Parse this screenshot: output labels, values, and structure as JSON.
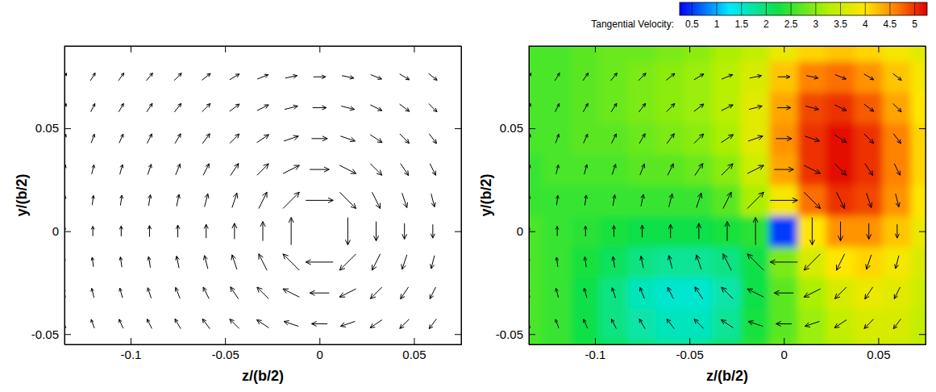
{
  "chart_data": [
    {
      "type": "quiver",
      "x_label": "z/(b/2)",
      "y_label": "y/(b/2)",
      "xlim": [
        -0.135,
        0.075
      ],
      "ylim": [
        -0.055,
        0.09
      ],
      "xticks": [
        -0.1,
        -0.05,
        0,
        0.05
      ],
      "yticks": [
        -0.05,
        0,
        0.05
      ],
      "vectors": {
        "x": [
          -0.135,
          -0.12,
          -0.105,
          -0.09,
          -0.075,
          -0.06,
          -0.045,
          -0.03,
          -0.015,
          0,
          0.015,
          0.03,
          0.045,
          0.06
        ],
        "y": [
          -0.045,
          -0.03,
          -0.015,
          0,
          0.015,
          0.03,
          0.045,
          0.06,
          0.075
        ],
        "u": [
          [
            -0.1,
            -0.12,
            -0.16,
            -0.2,
            -0.26,
            -0.36,
            -0.5,
            -0.69,
            -0.9,
            -1,
            -0.9,
            -0.69,
            -0.5,
            -0.36
          ],
          [
            -0.07,
            -0.09,
            -0.11,
            -0.15,
            -0.21,
            -0.3,
            -0.46,
            -0.75,
            -1.2,
            -1.5,
            -1.2,
            -0.75,
            -0.46,
            -0.3
          ],
          [
            -0.04,
            -0.05,
            -0.06,
            -0.08,
            -0.12,
            -0.18,
            -0.3,
            -0.6,
            -1.5,
            -3,
            -1.5,
            -0.6,
            -0.3,
            -0.18
          ],
          [
            0,
            0,
            0,
            0,
            0,
            0,
            0,
            0,
            0,
            0,
            0,
            0,
            0,
            0
          ],
          [
            0.04,
            0.05,
            0.06,
            0.08,
            0.12,
            0.18,
            0.3,
            0.6,
            1.5,
            3,
            1.5,
            0.6,
            0.3,
            0.18
          ],
          [
            0.07,
            0.09,
            0.11,
            0.15,
            0.21,
            0.3,
            0.46,
            0.75,
            1.2,
            1.5,
            1.2,
            0.75,
            0.46,
            0.3
          ],
          [
            0.1,
            0.12,
            0.16,
            0.2,
            0.26,
            0.36,
            0.5,
            0.69,
            0.9,
            1,
            0.9,
            0.69,
            0.5,
            0.36
          ],
          [
            0.12,
            0.15,
            0.18,
            0.23,
            0.29,
            0.38,
            0.48,
            0.6,
            0.71,
            0.75,
            0.71,
            0.6,
            0.48,
            0.38
          ],
          [
            0.14,
            0.17,
            0.2,
            0.25,
            0.3,
            0.37,
            0.44,
            0.52,
            0.58,
            0.6,
            0.58,
            0.52,
            0.44,
            0.37
          ]
        ],
        "v": [
          [
            0.3,
            0.33,
            0.36,
            0.4,
            0.44,
            0.48,
            0.5,
            0.46,
            0.3,
            0,
            -0.3,
            -0.46,
            -0.5,
            -0.48
          ],
          [
            0.32,
            0.35,
            0.4,
            0.45,
            0.52,
            0.6,
            0.69,
            0.75,
            0.6,
            0,
            -0.6,
            -0.75,
            -0.69,
            -0.6
          ],
          [
            0.33,
            0.37,
            0.42,
            0.49,
            0.58,
            0.71,
            0.9,
            1.2,
            1.5,
            0,
            -1.5,
            -1.2,
            -0.9,
            -0.71
          ],
          [
            0.33,
            0.38,
            0.43,
            0.5,
            0.6,
            0.75,
            1,
            1.5,
            3,
            0,
            -3,
            -1.5,
            -1,
            -0.75
          ],
          [
            0.33,
            0.37,
            0.42,
            0.49,
            0.58,
            0.71,
            0.9,
            1.2,
            1.5,
            0,
            -1.5,
            -1.2,
            -0.9,
            -0.71
          ],
          [
            0.32,
            0.35,
            0.4,
            0.45,
            0.52,
            0.6,
            0.69,
            0.75,
            0.6,
            0,
            -0.6,
            -0.75,
            -0.69,
            -0.6
          ],
          [
            0.3,
            0.33,
            0.36,
            0.4,
            0.44,
            0.48,
            0.5,
            0.46,
            0.3,
            0,
            -0.3,
            -0.46,
            -0.5,
            -0.48
          ],
          [
            0.28,
            0.3,
            0.32,
            0.35,
            0.37,
            0.38,
            0.36,
            0.3,
            0.18,
            0,
            -0.18,
            -0.3,
            -0.36,
            -0.38
          ],
          [
            0.25,
            0.27,
            0.28,
            0.3,
            0.3,
            0.29,
            0.26,
            0.21,
            0.12,
            0,
            -0.12,
            -0.21,
            -0.26,
            -0.29
          ]
        ]
      }
    },
    {
      "type": "contour_quiver",
      "x_label": "z/(b/2)",
      "y_label": "y/(b/2)",
      "xlim": [
        -0.135,
        0.075
      ],
      "ylim": [
        -0.055,
        0.09
      ],
      "xticks": [
        -0.1,
        -0.05,
        0,
        0.05
      ],
      "yticks": [
        -0.05,
        0,
        0.05
      ],
      "colorbar": {
        "title": "Tangential Velocity:",
        "range": [
          0.25,
          5.25
        ],
        "ticks": [
          0.5,
          1,
          1.5,
          2,
          2.5,
          3,
          3.5,
          4,
          4.5,
          5
        ]
      },
      "tangential_velocity": {
        "x": [
          -0.135,
          -0.12,
          -0.105,
          -0.09,
          -0.075,
          -0.06,
          -0.045,
          -0.03,
          -0.015,
          0,
          0.015,
          0.03,
          0.045,
          0.06,
          0.075
        ],
        "y": [
          -0.06,
          -0.045,
          -0.03,
          -0.015,
          0,
          0.015,
          0.03,
          0.045,
          0.06,
          0.075,
          0.09
        ],
        "values": [
          [
            2.6,
            2.5,
            2.3,
            2.1,
            1.9,
            1.8,
            1.8,
            2.0,
            2.4,
            2.8,
            3.1,
            3.3,
            3.5,
            3.5,
            3.4
          ],
          [
            2.6,
            2.5,
            2.2,
            1.9,
            1.7,
            1.6,
            1.6,
            1.8,
            2.3,
            2.7,
            3.1,
            3.4,
            3.6,
            3.6,
            3.4
          ],
          [
            2.6,
            2.5,
            2.2,
            1.9,
            1.6,
            1.5,
            1.5,
            1.7,
            2.2,
            2.7,
            3.2,
            3.6,
            3.8,
            3.7,
            3.5
          ],
          [
            2.6,
            2.5,
            2.3,
            2.1,
            1.9,
            1.8,
            1.8,
            1.9,
            2.2,
            2.9,
            3.6,
            4.0,
            4.1,
            3.9,
            3.6
          ],
          [
            2.6,
            2.5,
            2.4,
            2.3,
            2.2,
            2.2,
            2.2,
            2.3,
            2.4,
            0.5,
            4.0,
            4.5,
            4.5,
            4.2,
            3.8
          ],
          [
            2.5,
            2.5,
            2.5,
            2.5,
            2.5,
            2.5,
            2.5,
            2.7,
            3.2,
            3.9,
            4.7,
            5.0,
            4.9,
            4.5,
            4.0
          ],
          [
            2.5,
            2.6,
            2.6,
            2.6,
            2.7,
            2.7,
            2.8,
            3.0,
            3.5,
            4.4,
            5.0,
            5.2,
            5.0,
            4.6,
            4.1
          ],
          [
            2.6,
            2.6,
            2.7,
            2.7,
            2.8,
            2.9,
            3.0,
            3.2,
            3.7,
            4.5,
            5.0,
            5.2,
            5.0,
            4.6,
            4.1
          ],
          [
            2.6,
            2.6,
            2.7,
            2.8,
            2.9,
            3.0,
            3.1,
            3.3,
            3.7,
            4.4,
            4.9,
            5.0,
            4.8,
            4.4,
            4.0
          ],
          [
            2.6,
            2.6,
            2.7,
            2.8,
            2.9,
            3.0,
            3.1,
            3.3,
            3.6,
            4.2,
            4.6,
            4.7,
            4.5,
            4.2,
            3.9
          ],
          [
            2.6,
            2.6,
            2.7,
            2.8,
            2.8,
            2.9,
            3.0,
            3.2,
            3.4,
            3.8,
            4.1,
            4.2,
            4.1,
            3.9,
            3.7
          ]
        ]
      },
      "vectors": {
        "x": [
          -0.135,
          -0.12,
          -0.105,
          -0.09,
          -0.075,
          -0.06,
          -0.045,
          -0.03,
          -0.015,
          0,
          0.015,
          0.03,
          0.045,
          0.06
        ],
        "y": [
          -0.045,
          -0.03,
          -0.015,
          0,
          0.015,
          0.03,
          0.045,
          0.06,
          0.075
        ],
        "u": [
          [
            -0.1,
            -0.12,
            -0.16,
            -0.2,
            -0.26,
            -0.36,
            -0.5,
            -0.69,
            -0.9,
            -1,
            -0.9,
            -0.69,
            -0.5,
            -0.36
          ],
          [
            -0.07,
            -0.09,
            -0.11,
            -0.15,
            -0.21,
            -0.3,
            -0.46,
            -0.75,
            -1.2,
            -1.5,
            -1.2,
            -0.75,
            -0.46,
            -0.3
          ],
          [
            -0.04,
            -0.05,
            -0.06,
            -0.08,
            -0.12,
            -0.18,
            -0.3,
            -0.6,
            -1.5,
            -3,
            -1.5,
            -0.6,
            -0.3,
            -0.18
          ],
          [
            0,
            0,
            0,
            0,
            0,
            0,
            0,
            0,
            0,
            0,
            0,
            0,
            0,
            0
          ],
          [
            0.04,
            0.05,
            0.06,
            0.08,
            0.12,
            0.18,
            0.3,
            0.6,
            1.5,
            3,
            1.5,
            0.6,
            0.3,
            0.18
          ],
          [
            0.07,
            0.09,
            0.11,
            0.15,
            0.21,
            0.3,
            0.46,
            0.75,
            1.2,
            1.5,
            1.2,
            0.75,
            0.46,
            0.3
          ],
          [
            0.1,
            0.12,
            0.16,
            0.2,
            0.26,
            0.36,
            0.5,
            0.69,
            0.9,
            1,
            0.9,
            0.69,
            0.5,
            0.36
          ],
          [
            0.12,
            0.15,
            0.18,
            0.23,
            0.29,
            0.38,
            0.48,
            0.6,
            0.71,
            0.75,
            0.71,
            0.6,
            0.48,
            0.38
          ],
          [
            0.14,
            0.17,
            0.2,
            0.25,
            0.3,
            0.37,
            0.44,
            0.52,
            0.58,
            0.6,
            0.58,
            0.52,
            0.44,
            0.37
          ]
        ],
        "v": [
          [
            0.3,
            0.33,
            0.36,
            0.4,
            0.44,
            0.48,
            0.5,
            0.46,
            0.3,
            0,
            -0.3,
            -0.46,
            -0.5,
            -0.48
          ],
          [
            0.32,
            0.35,
            0.4,
            0.45,
            0.52,
            0.6,
            0.69,
            0.75,
            0.6,
            0,
            -0.6,
            -0.75,
            -0.69,
            -0.6
          ],
          [
            0.33,
            0.37,
            0.42,
            0.49,
            0.58,
            0.71,
            0.9,
            1.2,
            1.5,
            0,
            -1.5,
            -1.2,
            -0.9,
            -0.71
          ],
          [
            0.33,
            0.38,
            0.43,
            0.5,
            0.6,
            0.75,
            1,
            1.5,
            3,
            0,
            -3,
            -1.5,
            -1,
            -0.75
          ],
          [
            0.33,
            0.37,
            0.42,
            0.49,
            0.58,
            0.71,
            0.9,
            1.2,
            1.5,
            0,
            -1.5,
            -1.2,
            -0.9,
            -0.71
          ],
          [
            0.32,
            0.35,
            0.4,
            0.45,
            0.52,
            0.6,
            0.69,
            0.75,
            0.6,
            0,
            -0.6,
            -0.75,
            -0.69,
            -0.6
          ],
          [
            0.3,
            0.33,
            0.36,
            0.4,
            0.44,
            0.48,
            0.5,
            0.46,
            0.3,
            0,
            -0.3,
            -0.46,
            -0.5,
            -0.48
          ],
          [
            0.28,
            0.3,
            0.32,
            0.35,
            0.37,
            0.38,
            0.36,
            0.3,
            0.18,
            0,
            -0.18,
            -0.3,
            -0.36,
            -0.38
          ],
          [
            0.25,
            0.27,
            0.28,
            0.3,
            0.3,
            0.29,
            0.26,
            0.21,
            0.12,
            0,
            -0.12,
            -0.21,
            -0.26,
            -0.29
          ]
        ]
      }
    }
  ]
}
